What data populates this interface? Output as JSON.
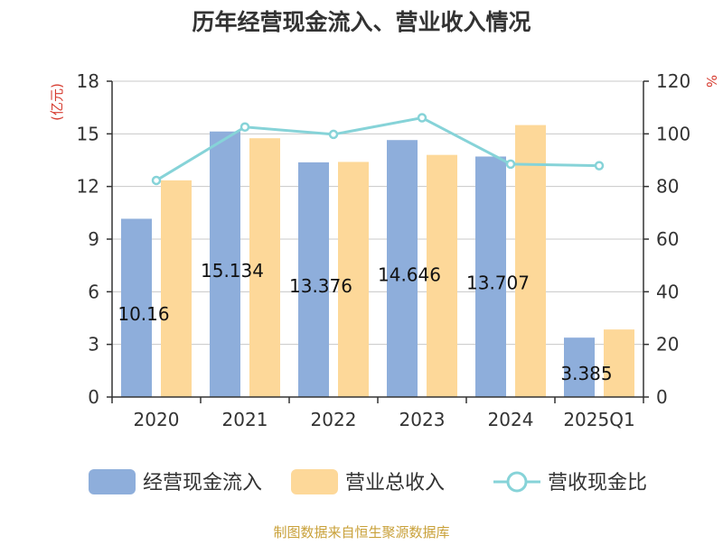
{
  "chart_data": {
    "type": "bar",
    "title": "历年经营现金流入、营业收入情况",
    "ylabel_left": "(亿元)",
    "ylabel_right": "%",
    "categories": [
      "2020",
      "2021",
      "2022",
      "2023",
      "2024",
      "2025Q1"
    ],
    "ylim_left": [
      0,
      18
    ],
    "yticks_left": [
      0,
      3,
      6,
      9,
      12,
      15,
      18
    ],
    "ylim_right": [
      0,
      120
    ],
    "yticks_right": [
      0,
      20,
      40,
      60,
      80,
      100,
      120
    ],
    "grid": true,
    "legend_position": "bottom",
    "series": [
      {
        "name": "经营现金流入",
        "kind": "bar",
        "axis": "left",
        "color": "#8eaedb",
        "values": [
          10.16,
          15.134,
          13.376,
          14.646,
          13.707,
          3.385
        ],
        "labels": [
          "10.16",
          "15.134",
          "13.376",
          "14.646",
          "13.707",
          "3.385"
        ]
      },
      {
        "name": "营业总收入",
        "kind": "bar",
        "axis": "left",
        "color": "#fdd899",
        "values": [
          12.35,
          14.75,
          13.4,
          13.8,
          15.5,
          3.85
        ]
      },
      {
        "name": "营收现金比",
        "kind": "line",
        "axis": "right",
        "color": "#86d3d8",
        "values": [
          82.3,
          102.6,
          99.8,
          106.1,
          88.5,
          87.9
        ]
      }
    ],
    "source": "制图数据来自恒生聚源数据库"
  }
}
